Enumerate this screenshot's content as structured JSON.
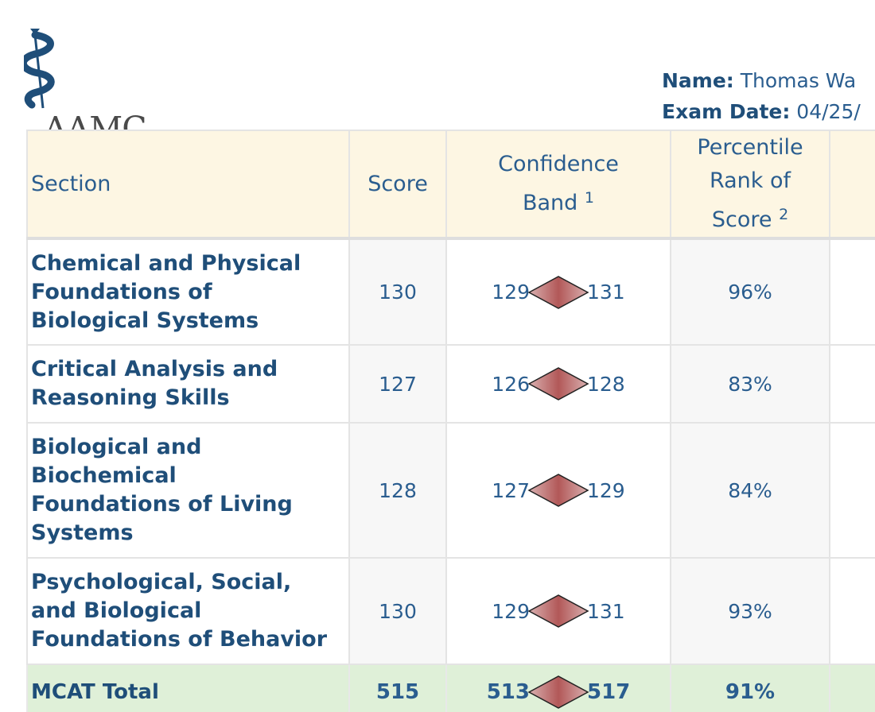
{
  "logo": {
    "text": "AAMC"
  },
  "header": {
    "name_label": "Name:",
    "name_value": " Thomas Wa",
    "date_label": "Exam Date:",
    "date_value": " 04/25/"
  },
  "table": {
    "headers": {
      "section": "Section",
      "score": "Score",
      "band_line1": "Confidence",
      "band_line2": "Band",
      "band_sup": "1",
      "pct_line1": "Percentile",
      "pct_line2": "Rank of",
      "pct_line3": "Score",
      "pct_sup": "2"
    },
    "rows": [
      {
        "section_lines": [
          "Chemical and Physical",
          "Foundations of",
          "Biological Systems"
        ],
        "score": "130",
        "band_low": "129",
        "band_high": "131",
        "percentile": "96%"
      },
      {
        "section_lines": [
          "Critical Analysis and",
          "Reasoning Skills"
        ],
        "score": "127",
        "band_low": "126",
        "band_high": "128",
        "percentile": "83%"
      },
      {
        "section_lines": [
          "Biological and",
          "Biochemical",
          "Foundations of Living",
          "Systems"
        ],
        "score": "128",
        "band_low": "127",
        "band_high": "129",
        "percentile": "84%"
      },
      {
        "section_lines": [
          "Psychological, Social,",
          "and Biological",
          "Foundations of Behavior"
        ],
        "score": "130",
        "band_low": "129",
        "band_high": "131",
        "percentile": "93%"
      }
    ],
    "total": {
      "section": "MCAT Total",
      "score": "515",
      "band_low": "513",
      "band_high": "517",
      "percentile": "91%"
    }
  },
  "colors": {
    "header_bg": "#fdf6e3",
    "total_bg": "#dff0d8",
    "text": "#1f4e79",
    "diamond": "#b85c5c"
  }
}
